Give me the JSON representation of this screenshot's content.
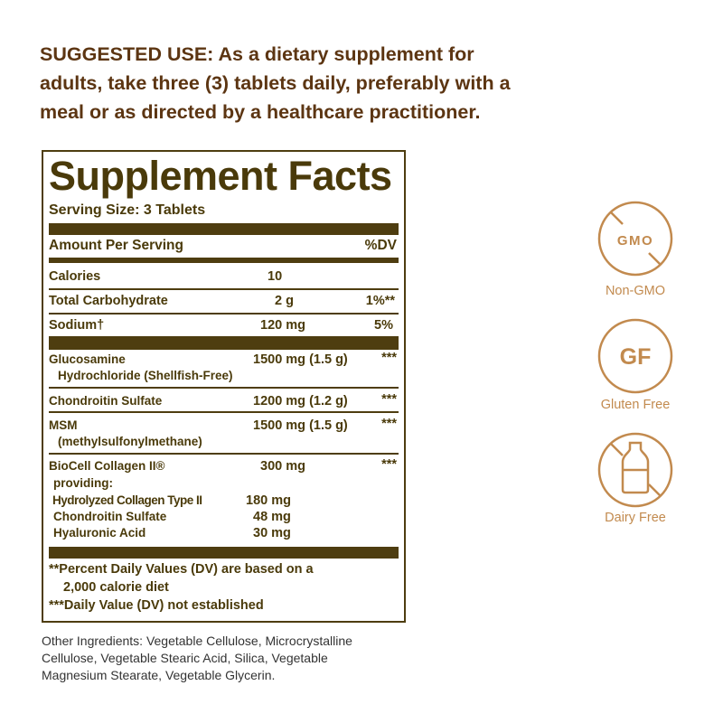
{
  "suggested_use": {
    "label": "SUGGESTED USE:",
    "text": " As a dietary supplement for adults, take three (3) tablets daily, preferably with a meal or as directed by a healthcare practitioner."
  },
  "facts": {
    "title": "Supplement Facts",
    "serving_size": "Serving Size: 3 Tablets",
    "amount_header": "Amount Per Serving",
    "dv_header": "%DV",
    "rows": [
      {
        "name": "Calories",
        "amount": "10",
        "dv": ""
      },
      {
        "name": "Total Carbohydrate",
        "amount": "2 g",
        "dv": "1%**"
      },
      {
        "name": "Sodium†",
        "amount": "120 mg",
        "dv": "5%"
      },
      {
        "name": "Glucosamine",
        "sub": "Hydrochloride (Shellfish-Free)",
        "amount": "1500 mg (1.5 g)",
        "dv": "***"
      },
      {
        "name": "Chondroitin Sulfate",
        "amount": "1200 mg (1.2 g)",
        "dv": "***"
      },
      {
        "name": "MSM",
        "sub": "(methylsulfonylmethane)",
        "amount": "1500 mg (1.5 g)",
        "dv": "***"
      },
      {
        "name": "BioCell Collagen II®",
        "sub": "providing:",
        "amount": "300 mg",
        "dv": "***"
      }
    ],
    "sub_rows": [
      {
        "name": "Hydrolyzed Collagen Type II",
        "amount": "180 mg"
      },
      {
        "name": "Chondroitin Sulfate",
        "amount": "48 mg"
      },
      {
        "name": "Hyaluronic Acid",
        "amount": "30 mg"
      }
    ],
    "footnote1a": "**Percent Daily Values (DV) are based on a",
    "footnote1b": "2,000 calorie diet",
    "footnote2": "***Daily Value (DV) not established"
  },
  "other_ingredients": "Other Ingredients: Vegetable Cellulose, Microcrystalline Cellulose, Vegetable Stearic Acid, Silica, Vegetable Magnesium Stearate, Vegetable Glycerin.",
  "badges": [
    {
      "icon": "non-gmo-icon",
      "text": "GMO",
      "label": "Non-GMO"
    },
    {
      "icon": "gluten-free-icon",
      "text": "GF",
      "label": "Gluten Free"
    },
    {
      "icon": "dairy-free-icon",
      "label": "Dairy Free"
    }
  ],
  "colors": {
    "heading": "#5c3512",
    "panel": "#4e3d10",
    "badge": "#c28a4e"
  }
}
